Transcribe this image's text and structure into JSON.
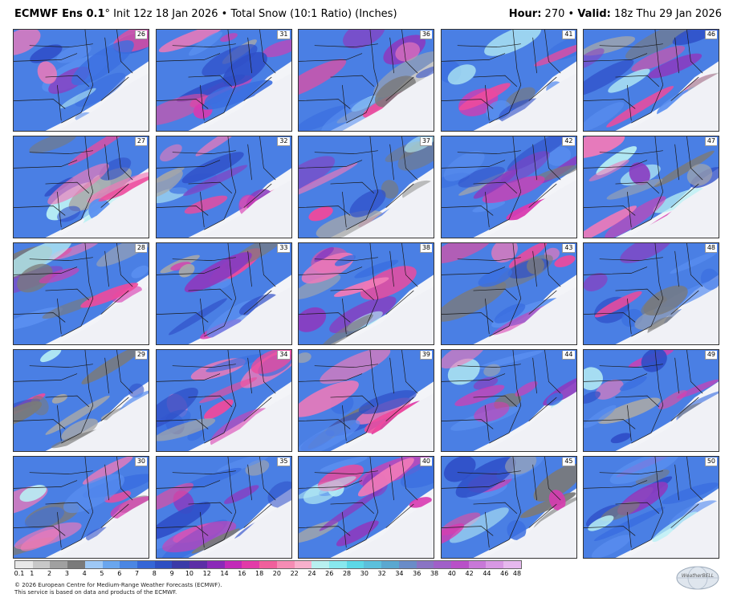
{
  "header": {
    "model": "ECMWF Ens 0.1",
    "degree": "°",
    "init": "Init 12z 18 Jan 2026",
    "bullet": "•",
    "product": "Total Snow (10:1 Ratio) (Inches)",
    "hour_label": "Hour:",
    "hour_value": "270",
    "valid_label": "Valid:",
    "valid_value": "18z Thu 29 Jan 2026"
  },
  "members": [
    [
      "26",
      "31",
      "36",
      "41",
      "46"
    ],
    [
      "27",
      "32",
      "37",
      "42",
      "47"
    ],
    [
      "28",
      "33",
      "38",
      "43",
      "48"
    ],
    [
      "29",
      "34",
      "39",
      "44",
      "49"
    ],
    [
      "30",
      "35",
      "40",
      "45",
      "50"
    ]
  ],
  "colorbar": {
    "labels": [
      "0.1",
      "1",
      "2",
      "3",
      "4",
      "5",
      "6",
      "7",
      "8",
      "9",
      "10",
      "12",
      "14",
      "16",
      "18",
      "20",
      "22",
      "24",
      "26",
      "28",
      "30",
      "32",
      "34",
      "36",
      "38",
      "40",
      "42",
      "44",
      "46",
      "48"
    ],
    "colors": [
      "#e8e8e8",
      "#c8c8c8",
      "#a0a0a0",
      "#7a7a7a",
      "#9ec8f5",
      "#6aa6ee",
      "#4b86e3",
      "#3566d6",
      "#2e4fc2",
      "#3a3aa8",
      "#5c2ea6",
      "#8b2ab8",
      "#c22ab8",
      "#e23aa8",
      "#f0609c",
      "#f58cb4",
      "#f8b0cc",
      "#b8f0f0",
      "#88e8ee",
      "#5cd8e6",
      "#5cc0dc",
      "#5aa8d0",
      "#6a8cc8",
      "#8a74c4",
      "#a060c8",
      "#b850c8",
      "#c878d8",
      "#d898e4",
      "#e6b8ee"
    ]
  },
  "footer": {
    "line1": "© 2026 European Centre for Medium-Range Weather Forecasts (ECMWF).",
    "line2": "This service is based on data and products of the ECMWF."
  },
  "logo": {
    "text": "WeatherBELL"
  }
}
